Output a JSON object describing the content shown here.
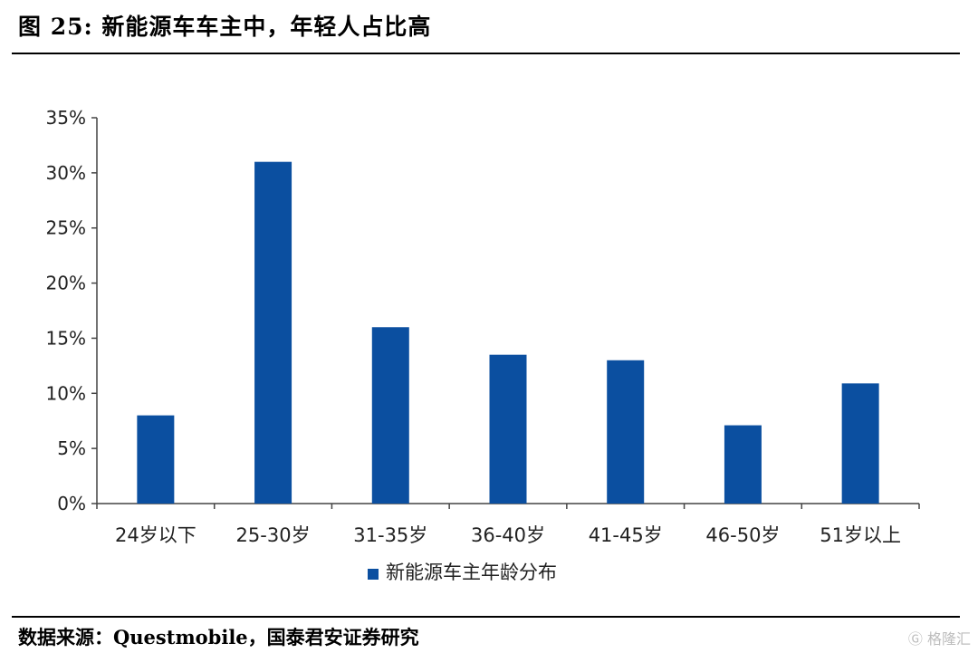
{
  "figure": {
    "title": "图 25:  新能源车车主中，年轻人占比高",
    "source": "数据来源：Questmobile，国泰君安证券研究",
    "watermark": "格隆汇"
  },
  "colors": {
    "bar": "#0b4fa0",
    "axis": "#444444",
    "text": "#222222"
  },
  "chart_data": {
    "type": "bar",
    "categories": [
      "24岁以下",
      "25-30岁",
      "31-35岁",
      "36-40岁",
      "41-45岁",
      "46-50岁",
      "51岁以上"
    ],
    "series": [
      {
        "name": "新能源车主年龄分布",
        "values": [
          8.0,
          31.0,
          16.0,
          13.5,
          13.0,
          7.1,
          10.9
        ]
      }
    ],
    "ylim": [
      0,
      35
    ],
    "yticks": [
      0,
      5,
      10,
      15,
      20,
      25,
      30,
      35
    ],
    "ytick_labels": [
      "0%",
      "5%",
      "10%",
      "15%",
      "20%",
      "25%",
      "30%",
      "35%"
    ],
    "grid": false,
    "legend_position": "bottom-center",
    "xlabel": "",
    "ylabel": ""
  }
}
